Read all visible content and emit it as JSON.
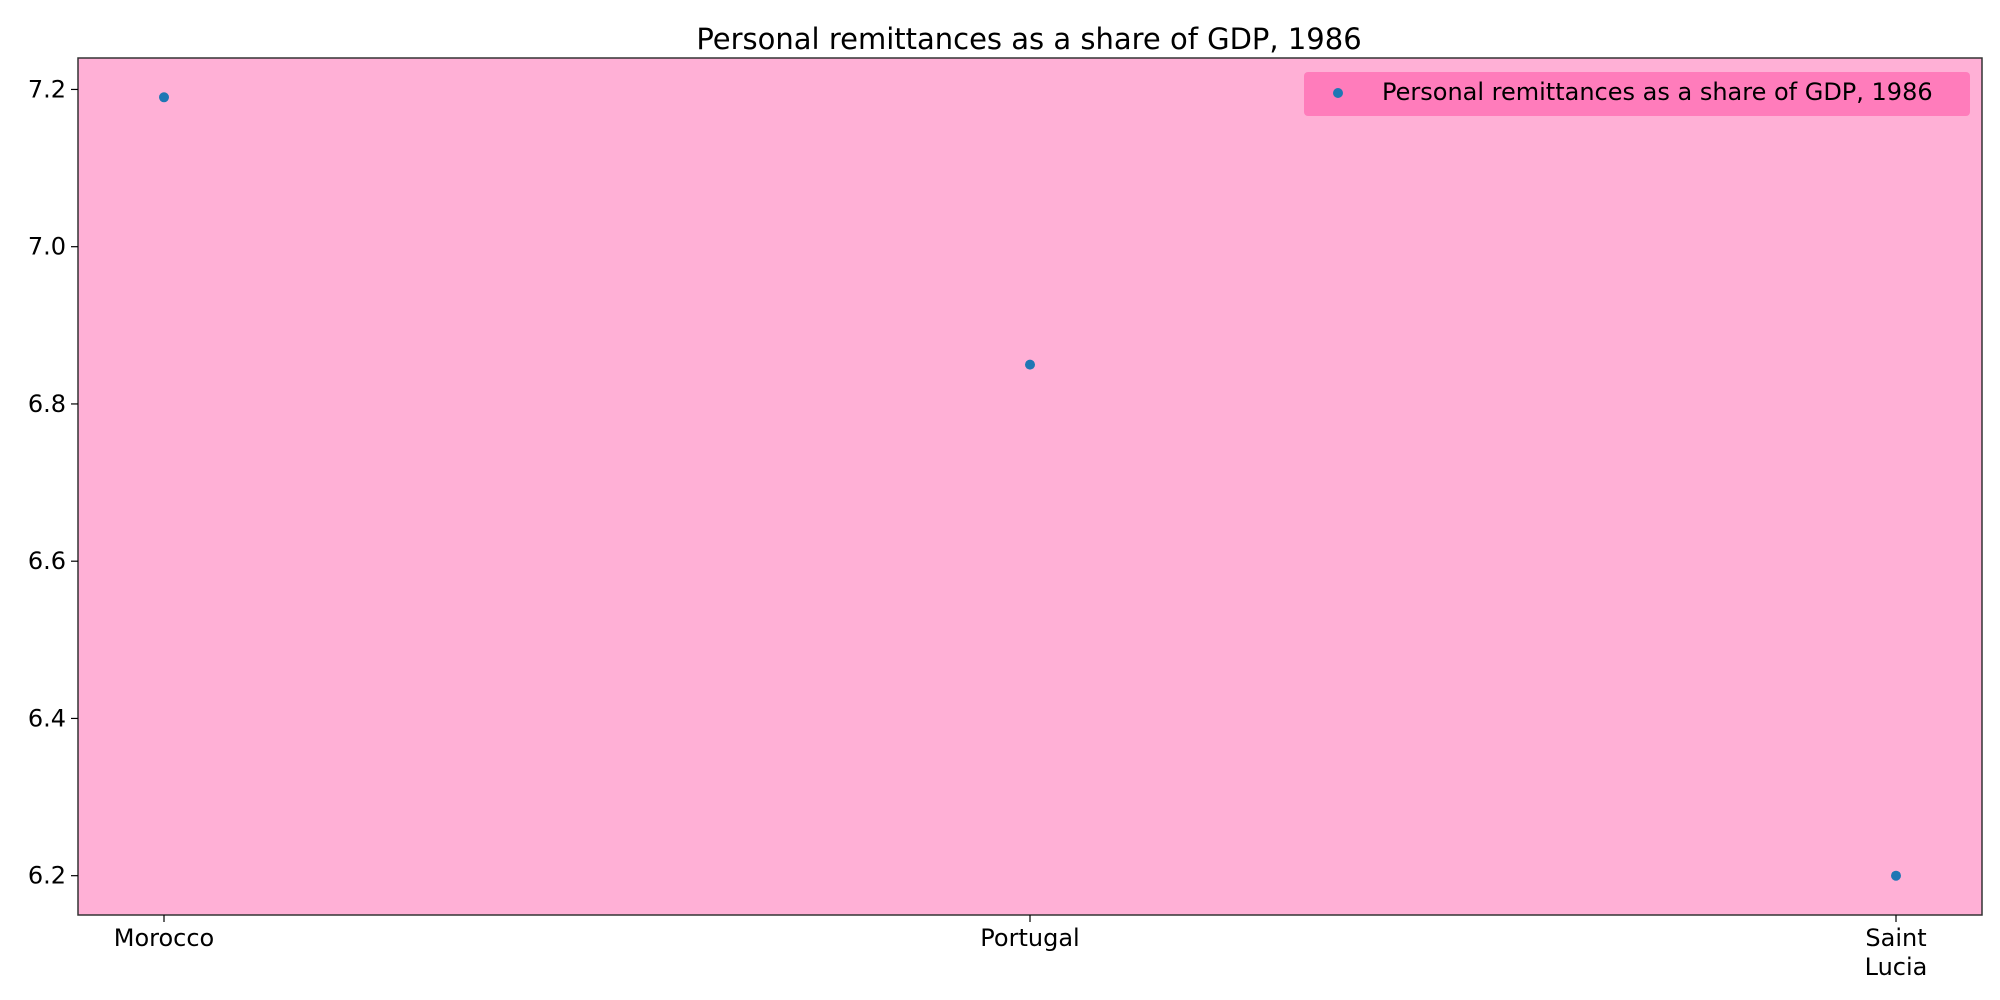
{
  "chart_data": {
    "type": "scatter",
    "title": "Personal remittances as a share of GDP, 1986",
    "xlabel": "",
    "ylabel": "",
    "categories": [
      "Morocco",
      "Portugal",
      "Saint Lucia"
    ],
    "x_tick_labels": [
      [
        "Morocco"
      ],
      [
        "Portugal"
      ],
      [
        "Saint",
        "Lucia"
      ]
    ],
    "series": [
      {
        "name": "Personal remittances as a share of GDP, 1986",
        "values": [
          7.19,
          6.85,
          6.2
        ],
        "color": "#1f77b4"
      }
    ],
    "ylim": [
      6.15,
      7.24
    ],
    "y_ticks": [
      6.2,
      6.4,
      6.6,
      6.8,
      7.0,
      7.2
    ],
    "y_tick_labels": [
      "6.2",
      "6.4",
      "6.6",
      "6.8",
      "7.0",
      "7.2"
    ],
    "grid": false,
    "legend_position": "top-right",
    "colors": {
      "plot_background": "#ffb0d6",
      "legend_background": "#ff7cbb",
      "axes_edge": "#333333",
      "marker": "#1f77b4"
    }
  }
}
